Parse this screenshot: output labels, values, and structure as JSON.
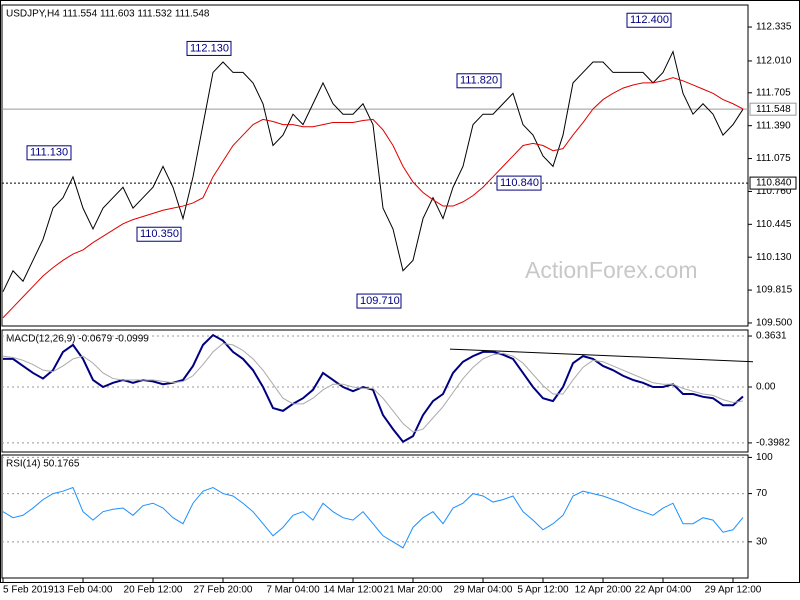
{
  "chart_data": [
    {
      "type": "line",
      "title": "USDJPY,H4  111.554 111.603 111.532 111.548",
      "watermark": "ActionForex.com",
      "ylim": [
        109.471,
        112.546
      ],
      "yticks": [
        112.335,
        {
          "value": 112.01,
          "label": "112.010"
        },
        111.705,
        {
          "value": 111.39,
          "label": "111.390"
        },
        111.075,
        {
          "value": 110.76,
          "label": "110.760"
        },
        110.445,
        {
          "value": 110.13,
          "label": "110.130"
        },
        109.815,
        {
          "value": 109.5,
          "label": "109.500"
        }
      ],
      "series": [
        {
          "color": "#000000",
          "values": [
            109.8,
            110.0,
            109.9,
            110.1,
            110.3,
            110.6,
            110.7,
            110.9,
            110.6,
            110.4,
            110.6,
            110.7,
            110.8,
            110.6,
            110.7,
            110.8,
            111.0,
            110.8,
            110.5,
            110.9,
            111.4,
            111.9,
            112.0,
            111.9,
            111.9,
            111.8,
            111.6,
            111.2,
            111.3,
            111.5,
            111.4,
            111.6,
            111.8,
            111.6,
            111.5,
            111.5,
            111.6,
            111.4,
            110.6,
            110.4,
            110.0,
            110.1,
            110.5,
            110.7,
            110.5,
            110.8,
            111.0,
            111.4,
            111.5,
            111.5,
            111.6,
            111.7,
            111.4,
            111.3,
            111.1,
            111.0,
            111.3,
            111.8,
            111.9,
            112.0,
            112.0,
            111.9,
            111.9,
            111.9,
            111.9,
            111.8,
            111.9,
            112.1,
            111.7,
            111.5,
            111.6,
            111.5,
            111.3,
            111.4,
            111.548
          ]
        },
        {
          "color": "#e00000",
          "values": [
            109.55,
            109.65,
            109.75,
            109.85,
            109.95,
            110.03,
            110.1,
            110.16,
            110.2,
            110.27,
            110.33,
            110.39,
            110.45,
            110.49,
            110.52,
            110.55,
            110.58,
            110.6,
            110.62,
            110.65,
            110.7,
            110.9,
            111.05,
            111.2,
            111.3,
            111.4,
            111.45,
            111.43,
            111.4,
            111.4,
            111.38,
            111.38,
            111.4,
            111.42,
            111.42,
            111.42,
            111.44,
            111.45,
            111.35,
            111.2,
            111.0,
            110.85,
            110.75,
            110.68,
            110.62,
            110.62,
            110.66,
            110.72,
            110.8,
            110.9,
            111.0,
            111.1,
            111.2,
            111.22,
            111.2,
            111.15,
            111.17,
            111.3,
            111.42,
            111.55,
            111.64,
            111.7,
            111.75,
            111.78,
            111.8,
            111.8,
            111.82,
            111.85,
            111.82,
            111.78,
            111.74,
            111.7,
            111.64,
            111.6,
            111.55
          ]
        }
      ],
      "levels": [
        {
          "value": 111.548,
          "label": "111.548",
          "color": "#999999",
          "fill": "#ffffff"
        },
        {
          "value": 110.84,
          "label": "110.840",
          "color": "#000000",
          "fill": "#ffffff",
          "dotted": true
        }
      ],
      "annotations": [
        {
          "label": "111.130",
          "value": 111.13,
          "x": 7
        },
        {
          "label": "110.350",
          "value": 110.35,
          "x": 18
        },
        {
          "label": "112.130",
          "value": 112.13,
          "x": 23
        },
        {
          "label": "109.710",
          "value": 109.71,
          "x": 40
        },
        {
          "label": "111.820",
          "value": 111.82,
          "x": 50
        },
        {
          "label": "110.840",
          "value": 110.84,
          "x": 54
        },
        {
          "label": "112.400",
          "value": 112.4,
          "x": 67
        }
      ]
    },
    {
      "type": "line",
      "title": "MACD(12,26,9) -0.0679 -0.0999",
      "ylim": [
        -0.463,
        0.406
      ],
      "yticks": [
        0.3631,
        {
          "value": 0,
          "label": "0.00"
        },
        -0.3982
      ],
      "series": [
        {
          "color": "#000080",
          "values": [
            0.2,
            0.2,
            0.15,
            0.1,
            0.06,
            0.12,
            0.25,
            0.3,
            0.2,
            0.05,
            0.0,
            0.03,
            0.05,
            0.03,
            0.05,
            0.04,
            0.02,
            0.03,
            0.05,
            0.15,
            0.3,
            0.37,
            0.33,
            0.25,
            0.2,
            0.12,
            0.0,
            -0.15,
            -0.17,
            -0.12,
            -0.08,
            -0.02,
            0.1,
            0.05,
            0.0,
            -0.03,
            0.0,
            -0.02,
            -0.2,
            -0.3,
            -0.39,
            -0.35,
            -0.2,
            -0.1,
            -0.05,
            0.1,
            0.18,
            0.22,
            0.25,
            0.25,
            0.23,
            0.2,
            0.1,
            0.0,
            -0.08,
            -0.1,
            0.0,
            0.17,
            0.22,
            0.2,
            0.15,
            0.12,
            0.08,
            0.05,
            0.03,
            0.0,
            0.0,
            0.02,
            -0.05,
            -0.05,
            -0.07,
            -0.08,
            -0.13,
            -0.13,
            -0.0679
          ]
        },
        {
          "color": "#aaaaaa",
          "values": [
            0.22,
            0.21,
            0.19,
            0.16,
            0.12,
            0.11,
            0.15,
            0.2,
            0.22,
            0.17,
            0.1,
            0.06,
            0.05,
            0.05,
            0.05,
            0.05,
            0.04,
            0.03,
            0.04,
            0.08,
            0.16,
            0.25,
            0.31,
            0.3,
            0.26,
            0.2,
            0.12,
            0.02,
            -0.08,
            -0.12,
            -0.12,
            -0.08,
            -0.02,
            0.02,
            0.02,
            0.0,
            -0.01,
            -0.01,
            -0.08,
            -0.17,
            -0.26,
            -0.32,
            -0.3,
            -0.22,
            -0.14,
            -0.04,
            0.06,
            0.14,
            0.2,
            0.23,
            0.24,
            0.22,
            0.17,
            0.09,
            0.01,
            -0.05,
            -0.05,
            0.05,
            0.14,
            0.19,
            0.18,
            0.15,
            0.12,
            0.09,
            0.06,
            0.03,
            0.02,
            0.02,
            -0.01,
            -0.03,
            -0.05,
            -0.06,
            -0.09,
            -0.11,
            -0.0999
          ]
        }
      ],
      "trendline": {
        "x": [
          44.7,
          75
        ],
        "values": [
          0.27,
          0.18
        ],
        "color": "#000000"
      }
    },
    {
      "type": "line",
      "title": "RSI(14) 50.1765",
      "ylim": [
        0,
        102
      ],
      "yticks": [
        100,
        70,
        30
      ],
      "series": [
        {
          "color": "#1e90ff",
          "values": [
            55,
            50,
            52,
            58,
            65,
            70,
            72,
            75,
            55,
            48,
            55,
            57,
            58,
            52,
            60,
            62,
            58,
            50,
            45,
            62,
            72,
            75,
            70,
            68,
            62,
            55,
            45,
            35,
            42,
            52,
            55,
            48,
            62,
            55,
            50,
            48,
            55,
            45,
            35,
            30,
            25,
            42,
            50,
            55,
            45,
            58,
            62,
            70,
            68,
            63,
            65,
            68,
            55,
            48,
            40,
            45,
            52,
            68,
            72,
            70,
            68,
            65,
            62,
            58,
            55,
            52,
            58,
            62,
            45,
            45,
            50,
            48,
            38,
            40,
            50.1765
          ]
        }
      ],
      "categories": [
        "5 Feb 2019",
        null,
        null,
        null,
        null,
        null,
        null,
        null,
        "13 Feb 04:00",
        null,
        null,
        null,
        null,
        null,
        null,
        "20 Feb 12:00",
        null,
        null,
        null,
        null,
        null,
        null,
        "27 Feb 20:00",
        null,
        null,
        null,
        null,
        null,
        null,
        "7 Mar 04:00",
        null,
        null,
        null,
        null,
        null,
        "14 Mar 12:00",
        null,
        null,
        null,
        null,
        null,
        "21 Mar 20:00",
        null,
        null,
        null,
        null,
        null,
        null,
        "29 Mar 04:00",
        null,
        null,
        null,
        null,
        null,
        "5 Apr 12:00",
        null,
        null,
        null,
        null,
        null,
        "12 Apr 20:00",
        null,
        null,
        null,
        null,
        null,
        "22 Apr 04:00",
        null,
        null,
        null,
        null,
        null,
        null,
        "29 Apr 12:00",
        null
      ]
    }
  ]
}
